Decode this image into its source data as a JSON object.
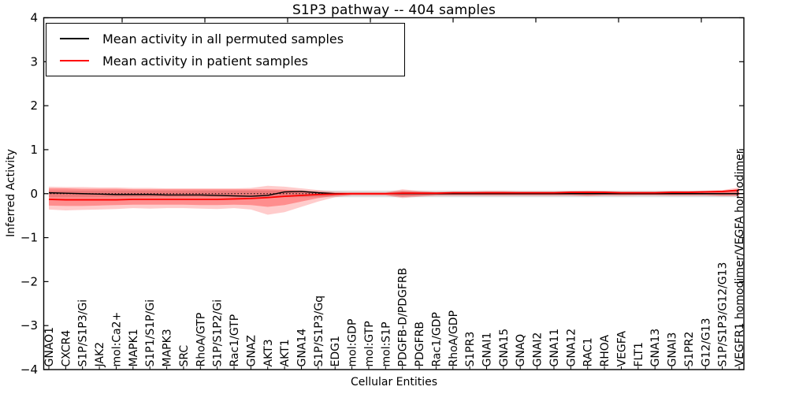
{
  "title": "S1P3 pathway -- 404 samples",
  "axes": {
    "ylabel": "Inferred Activity",
    "xlabel": "Cellular Entities"
  },
  "legend": {
    "items": [
      {
        "label": "Mean activity in all permuted samples",
        "color": "#000000"
      },
      {
        "label": "Mean activity in patient samples",
        "color": "#ff0000"
      }
    ]
  },
  "chart_data": {
    "type": "line",
    "title": "S1P3 pathway -- 404 samples",
    "xlabel": "Cellular Entities",
    "ylabel": "Inferred Activity",
    "ylim": [
      -4,
      4
    ],
    "grid": false,
    "legend_position": "upper left",
    "yticks": [
      {
        "value": 4,
        "label": "4"
      },
      {
        "value": 3,
        "label": "3"
      },
      {
        "value": 2,
        "label": "2"
      },
      {
        "value": 1,
        "label": "1"
      },
      {
        "value": 0,
        "label": "0"
      },
      {
        "value": -1,
        "label": "−1"
      },
      {
        "value": -2,
        "label": "−2"
      },
      {
        "value": -3,
        "label": "−3"
      },
      {
        "value": -4,
        "label": "−4"
      }
    ],
    "categories": [
      "GNAO1",
      "CXCR4",
      "S1P/S1P3/Gi",
      "JAK2",
      "mol:Ca2+",
      "MAPK1",
      "S1P1/S1P/Gi",
      "MAPK3",
      "SRC",
      "RhoA/GTP",
      "S1P/S1P2/Gi",
      "Rac1/GTP",
      "GNAZ",
      "AKT3",
      "AKT1",
      "GNA14",
      "S1P/S1P3/Gq",
      "EDG1",
      "mol:GDP",
      "mol:GTP",
      "mol:S1P",
      "PDGFB-D/PDGFRB",
      "PDGFRB",
      "Rac1/GDP",
      "RhoA/GDP",
      "S1PR3",
      "GNAI1",
      "GNA15",
      "GNAQ",
      "GNAI2",
      "GNA11",
      "GNA12",
      "RAC1",
      "RHOA",
      "VEGFA",
      "FLT1",
      "GNA13",
      "GNAI3",
      "S1PR2",
      "G12/G13",
      "S1P/S1P3/G12/G13",
      "VEGFR1 homodimer/VEGFA homodimer"
    ],
    "series": [
      {
        "name": "Mean activity in all permuted samples",
        "color": "#000000",
        "values": [
          0.02,
          0.01,
          0.0,
          -0.01,
          -0.02,
          -0.02,
          -0.02,
          -0.03,
          -0.03,
          -0.03,
          -0.04,
          -0.05,
          -0.06,
          -0.04,
          0.04,
          0.05,
          0.02,
          0.0,
          0.0,
          0.0,
          0.0,
          0.0,
          0.0,
          0.0,
          0.0,
          0.0,
          0.0,
          0.0,
          0.0,
          0.0,
          0.0,
          0.0,
          0.0,
          0.0,
          0.0,
          0.0,
          0.0,
          0.0,
          0.0,
          0.0,
          0.0,
          0.0
        ]
      },
      {
        "name": "Mean activity in patient samples",
        "color": "#ff0000",
        "values": [
          -0.13,
          -0.14,
          -0.14,
          -0.14,
          -0.14,
          -0.13,
          -0.13,
          -0.13,
          -0.13,
          -0.13,
          -0.13,
          -0.12,
          -0.11,
          -0.09,
          -0.06,
          -0.04,
          -0.02,
          -0.01,
          0.0,
          0.0,
          0.0,
          0.01,
          0.01,
          0.01,
          0.02,
          0.02,
          0.02,
          0.02,
          0.02,
          0.02,
          0.02,
          0.03,
          0.03,
          0.03,
          0.02,
          0.02,
          0.02,
          0.03,
          0.03,
          0.04,
          0.05,
          0.08
        ]
      }
    ],
    "bands": [
      {
        "name": "permuted-std-band",
        "color": "#000000",
        "alpha": 0.13,
        "top": 0.07,
        "bottom": -0.08
      },
      {
        "name": "patient-std-band-outer",
        "color": "#ff0000",
        "alpha": 0.2,
        "top": [
          0.16,
          0.15,
          0.15,
          0.14,
          0.14,
          0.13,
          0.13,
          0.12,
          0.12,
          0.12,
          0.12,
          0.12,
          0.13,
          0.18,
          0.16,
          0.12,
          0.08,
          0.04,
          0.03,
          0.03,
          0.03,
          0.1,
          0.06,
          0.04,
          0.05,
          0.05,
          0.06,
          0.06,
          0.05,
          0.05,
          0.05,
          0.06,
          0.07,
          0.06,
          0.05,
          0.05,
          0.05,
          0.06,
          0.06,
          0.07,
          0.08,
          0.14
        ],
        "bottom": [
          -0.36,
          -0.38,
          -0.37,
          -0.36,
          -0.35,
          -0.33,
          -0.34,
          -0.33,
          -0.33,
          -0.34,
          -0.35,
          -0.33,
          -0.36,
          -0.48,
          -0.42,
          -0.3,
          -0.18,
          -0.08,
          -0.04,
          -0.04,
          -0.04,
          -0.1,
          -0.07,
          -0.05,
          -0.05,
          -0.05,
          -0.05,
          -0.05,
          -0.05,
          -0.05,
          -0.05,
          -0.05,
          -0.06,
          -0.05,
          -0.05,
          -0.04,
          -0.04,
          -0.05,
          -0.05,
          -0.05,
          -0.06,
          -0.06
        ]
      },
      {
        "name": "patient-std-band-inner",
        "color": "#ff0000",
        "alpha": 0.3,
        "top": [
          0.12,
          0.12,
          0.11,
          0.11,
          0.11,
          0.1,
          0.1,
          0.1,
          0.1,
          0.1,
          0.1,
          0.1,
          0.1,
          0.1,
          0.09,
          0.07,
          0.04,
          0.02,
          0.02,
          0.02,
          0.02,
          0.06,
          0.04,
          0.03,
          0.03,
          0.03,
          0.04,
          0.04,
          0.03,
          0.03,
          0.03,
          0.04,
          0.04,
          0.04,
          0.03,
          0.03,
          0.03,
          0.04,
          0.04,
          0.05,
          0.06,
          0.1
        ],
        "bottom": [
          -0.27,
          -0.28,
          -0.28,
          -0.27,
          -0.26,
          -0.25,
          -0.25,
          -0.25,
          -0.25,
          -0.26,
          -0.26,
          -0.25,
          -0.26,
          -0.3,
          -0.26,
          -0.18,
          -0.1,
          -0.05,
          -0.03,
          -0.03,
          -0.03,
          -0.07,
          -0.05,
          -0.03,
          -0.03,
          -0.03,
          -0.03,
          -0.03,
          -0.03,
          -0.03,
          -0.03,
          -0.03,
          -0.04,
          -0.03,
          -0.03,
          -0.03,
          -0.03,
          -0.03,
          -0.03,
          -0.03,
          -0.04,
          -0.04
        ]
      }
    ],
    "reference_line": {
      "y": 0,
      "style": "dotted",
      "color": "#000000"
    }
  }
}
